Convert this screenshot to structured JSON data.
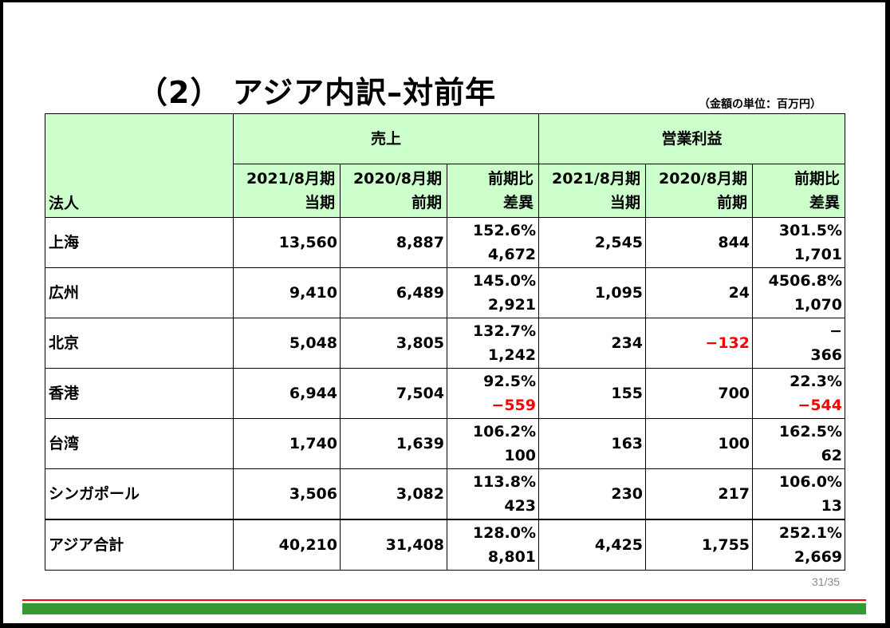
{
  "title": "（2） アジア内訳–対前年",
  "unit": "（金額の単位：百万円）",
  "page": "31/35",
  "colors": {
    "header_bg": "#ccffcc",
    "negative": "#ff0000",
    "footer_green": "#339933",
    "footer_red": "#ff0000"
  },
  "header": {
    "corp": "法人",
    "sales": "売上",
    "op": "営業利益",
    "c1a": "2021/8月期",
    "c1b": "当期",
    "c2a": "2020/8月期",
    "c2b": "前期",
    "c3a": "前期比",
    "c3b": "差異"
  },
  "rows": [
    {
      "name": "上海",
      "s_cur": "13,560",
      "s_prev": "8,887",
      "s_pct": "152.6%",
      "s_diff": "4,672",
      "o_cur": "2,545",
      "o_prev": "844",
      "o_pct": "301.5%",
      "o_diff": "1,701"
    },
    {
      "name": "広州",
      "s_cur": "9,410",
      "s_prev": "6,489",
      "s_pct": "145.0%",
      "s_diff": "2,921",
      "o_cur": "1,095",
      "o_prev": "24",
      "o_pct": "4506.8%",
      "o_diff": "1,070"
    },
    {
      "name": "北京",
      "s_cur": "5,048",
      "s_prev": "3,805",
      "s_pct": "132.7%",
      "s_diff": "1,242",
      "o_cur": "234",
      "o_prev": "−132",
      "o_pct": "−",
      "o_diff": "366"
    },
    {
      "name": "香港",
      "s_cur": "6,944",
      "s_prev": "7,504",
      "s_pct": "92.5%",
      "s_diff": "−559",
      "o_cur": "155",
      "o_prev": "700",
      "o_pct": "22.3%",
      "o_diff": "−544"
    },
    {
      "name": "台湾",
      "s_cur": "1,740",
      "s_prev": "1,639",
      "s_pct": "106.2%",
      "s_diff": "100",
      "o_cur": "163",
      "o_prev": "100",
      "o_pct": "162.5%",
      "o_diff": "62"
    },
    {
      "name": "シンガポール",
      "s_cur": "3,506",
      "s_prev": "3,082",
      "s_pct": "113.8%",
      "s_diff": "423",
      "o_cur": "230",
      "o_prev": "217",
      "o_pct": "106.0%",
      "o_diff": "13"
    },
    {
      "name": "アジア合計",
      "s_cur": "40,210",
      "s_prev": "31,408",
      "s_pct": "128.0%",
      "s_diff": "8,801",
      "o_cur": "4,425",
      "o_prev": "1,755",
      "o_pct": "252.1%",
      "o_diff": "2,669"
    }
  ]
}
